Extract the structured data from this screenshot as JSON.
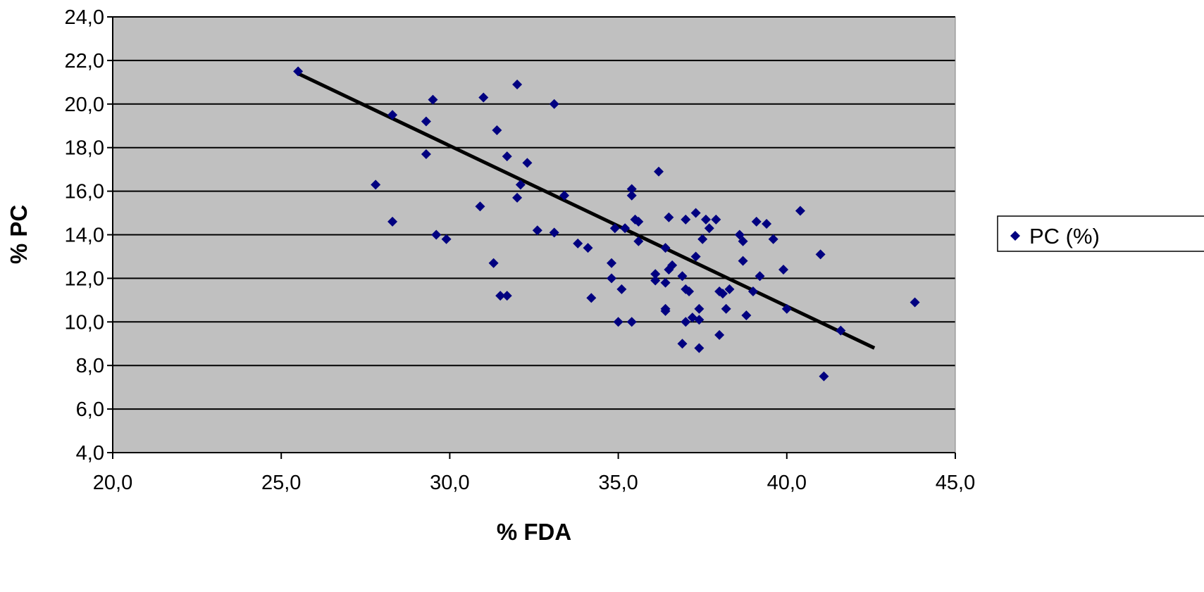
{
  "chart_data": {
    "type": "scatter",
    "title": "",
    "xlabel": "% FDA",
    "ylabel": "% PC",
    "xlim": [
      20,
      45
    ],
    "ylim": [
      4,
      24
    ],
    "x_ticks": [
      "20,0",
      "25,0",
      "30,0",
      "35,0",
      "40,0",
      "45,0"
    ],
    "y_ticks": [
      "4,0",
      "6,0",
      "8,0",
      "10,0",
      "12,0",
      "14,0",
      "16,0",
      "18,0",
      "20,0",
      "22,0",
      "24,0"
    ],
    "grid": "horizontal",
    "legend_position": "right",
    "colors": {
      "plot_background": "#c0c0c0",
      "marker": "#000080",
      "trendline": "#000000"
    },
    "series": [
      {
        "name": "PC (%)",
        "marker": "diamond",
        "x": [
          25.5,
          28.3,
          29.5,
          29.3,
          29.3,
          27.8,
          28.3,
          29.6,
          29.9,
          31.0,
          32.0,
          33.1,
          31.4,
          31.7,
          32.3,
          32.1,
          32.0,
          30.9,
          32.6,
          33.1,
          33.4,
          31.3,
          31.5,
          31.7,
          33.8,
          34.1,
          34.2,
          34.8,
          34.8,
          34.9,
          35.0,
          35.1,
          35.2,
          35.4,
          35.4,
          35.5,
          35.6,
          35.6,
          35.4,
          36.2,
          36.5,
          36.4,
          36.1,
          36.1,
          36.4,
          36.5,
          36.6,
          36.4,
          36.4,
          37.0,
          37.3,
          37.6,
          37.9,
          37.7,
          37.5,
          37.3,
          36.9,
          37.0,
          37.1,
          37.4,
          37.4,
          37.2,
          37.0,
          36.9,
          37.4,
          38.6,
          38.7,
          38.7,
          38.0,
          38.1,
          38.3,
          38.2,
          38.0,
          39.1,
          39.4,
          39.6,
          39.2,
          39.0,
          38.8,
          39.9,
          40.0,
          40.4,
          41.0,
          41.1,
          41.6,
          43.8
        ],
        "y": [
          21.5,
          19.5,
          20.2,
          19.2,
          17.7,
          16.3,
          14.6,
          14.0,
          13.8,
          20.3,
          20.9,
          20.0,
          18.8,
          17.6,
          17.3,
          16.3,
          15.7,
          15.3,
          14.2,
          14.1,
          15.8,
          12.7,
          11.2,
          11.2,
          13.6,
          13.4,
          11.1,
          12.7,
          12.0,
          14.3,
          10.0,
          11.5,
          14.3,
          16.1,
          15.8,
          14.7,
          14.6,
          13.7,
          10.0,
          16.9,
          14.8,
          13.4,
          12.2,
          11.9,
          11.8,
          12.4,
          12.6,
          10.6,
          10.5,
          14.7,
          15.0,
          14.7,
          14.7,
          14.3,
          13.8,
          13.0,
          12.1,
          11.5,
          11.4,
          10.6,
          10.1,
          10.2,
          10.0,
          9.0,
          8.8,
          14.0,
          13.7,
          12.8,
          11.4,
          11.3,
          11.5,
          10.6,
          9.4,
          14.6,
          14.5,
          13.8,
          12.1,
          11.4,
          10.3,
          12.4,
          10.6,
          15.1,
          13.1,
          7.5,
          9.6,
          10.9
        ]
      }
    ],
    "trendline": {
      "x": [
        25.5,
        42.6
      ],
      "y": [
        21.4,
        8.8
      ]
    }
  }
}
